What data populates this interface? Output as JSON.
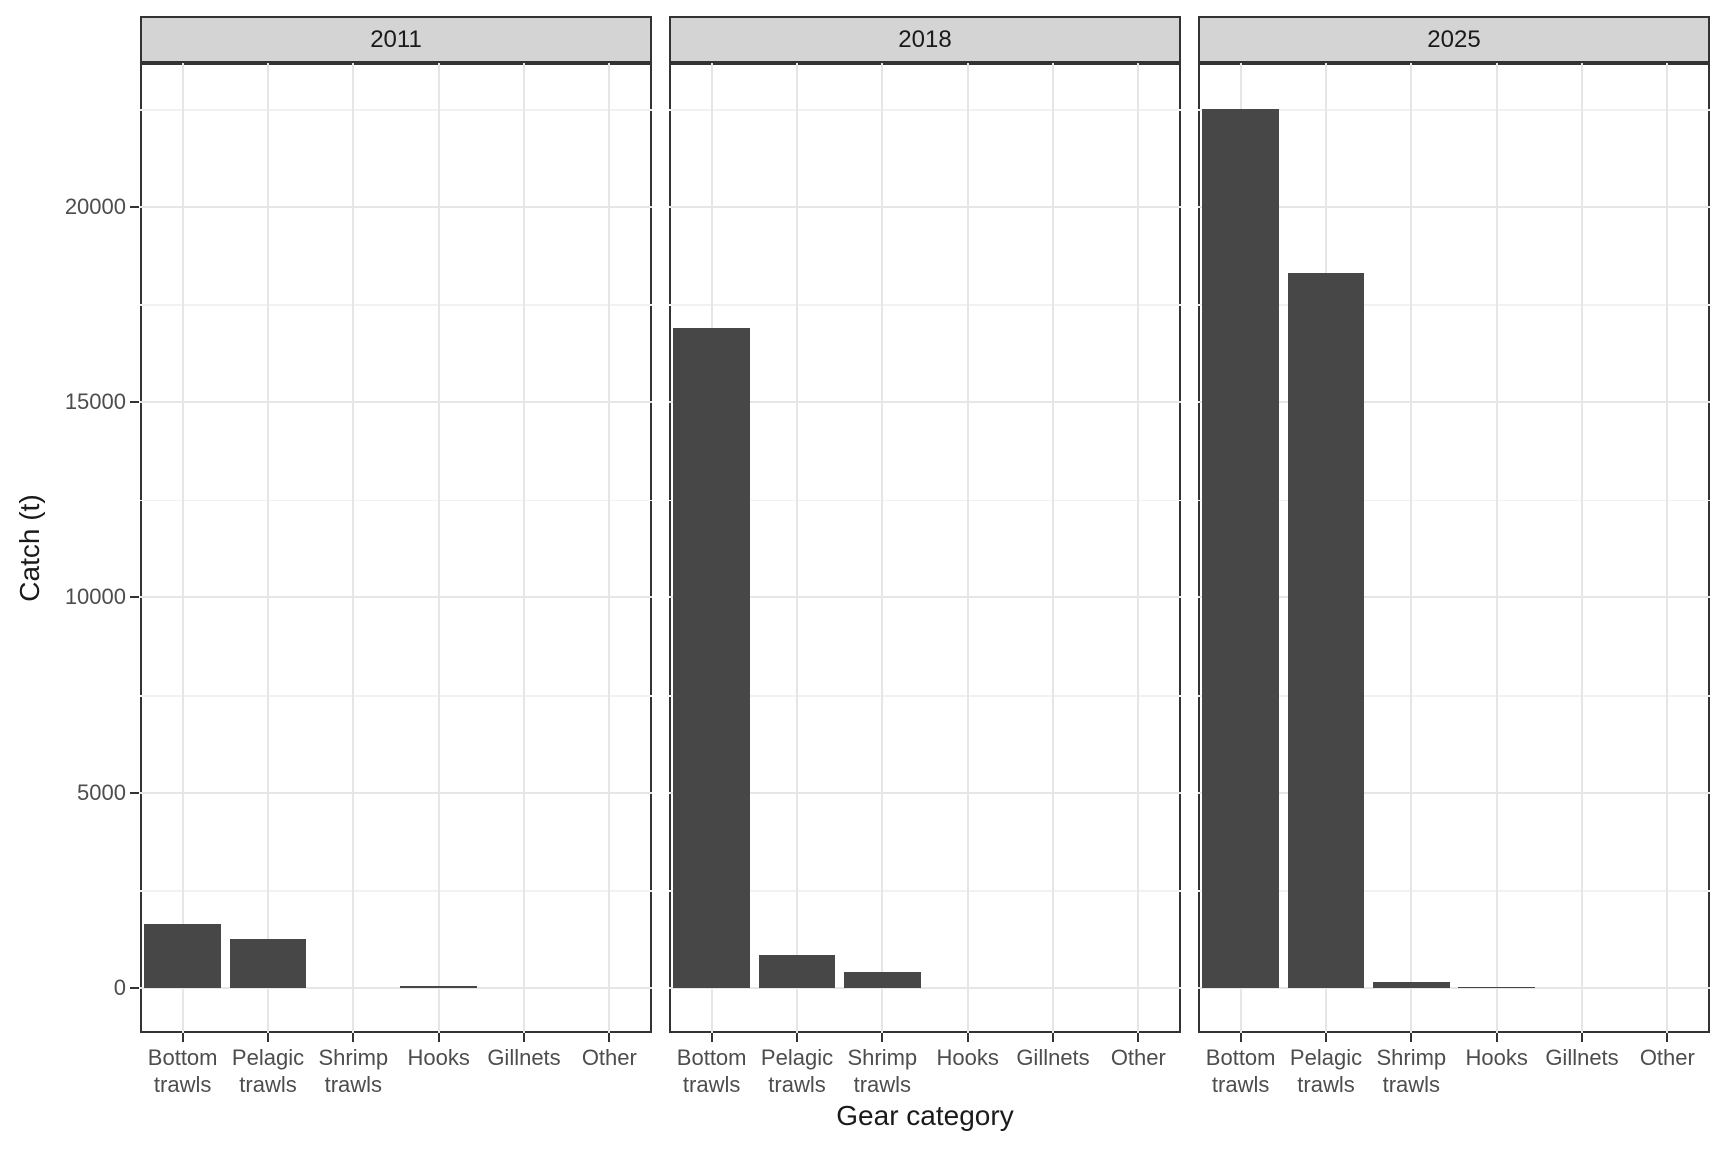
{
  "chart_data": {
    "type": "bar",
    "title": "",
    "xlabel": "Gear category",
    "ylabel": "Catch (t)",
    "facet_labels": [
      "2011",
      "2018",
      "2025"
    ],
    "categories": [
      "Bottom trawls",
      "Pelagic trawls",
      "Shrimp trawls",
      "Hooks",
      "Gillnets",
      "Other"
    ],
    "category_tick_lines": [
      [
        "Bottom",
        "trawls"
      ],
      [
        "Pelagic",
        "trawls"
      ],
      [
        "Shrimp",
        "trawls"
      ],
      [
        "Hooks"
      ],
      [
        "Gillnets"
      ],
      [
        "Other"
      ]
    ],
    "series": [
      {
        "name": "2011",
        "values": [
          1640,
          1250,
          0,
          40,
          0,
          0
        ]
      },
      {
        "name": "2018",
        "values": [
          16900,
          850,
          410,
          0,
          0,
          0
        ]
      },
      {
        "name": "2025",
        "values": [
          22500,
          18300,
          150,
          20,
          0,
          0
        ]
      }
    ],
    "y_axis": {
      "major_ticks": [
        0,
        5000,
        10000,
        15000,
        20000
      ],
      "minor_gridlines": [
        2500,
        7500,
        12500,
        17500,
        22500
      ],
      "range": [
        -1150,
        23690
      ]
    },
    "grid": true,
    "legend": "none",
    "bar_relative_width": 0.9
  },
  "colors": {
    "bar_fill": "#474747",
    "strip_background": "#d4d4d4",
    "panel_border": "#333333",
    "grid_major": "#e6e6e6",
    "grid_minor": "#f1f1f1",
    "axis_text": "#4d4d4d",
    "title_text": "#1a1a1a",
    "tick_mark": "#333333",
    "background": "#ffffff"
  }
}
